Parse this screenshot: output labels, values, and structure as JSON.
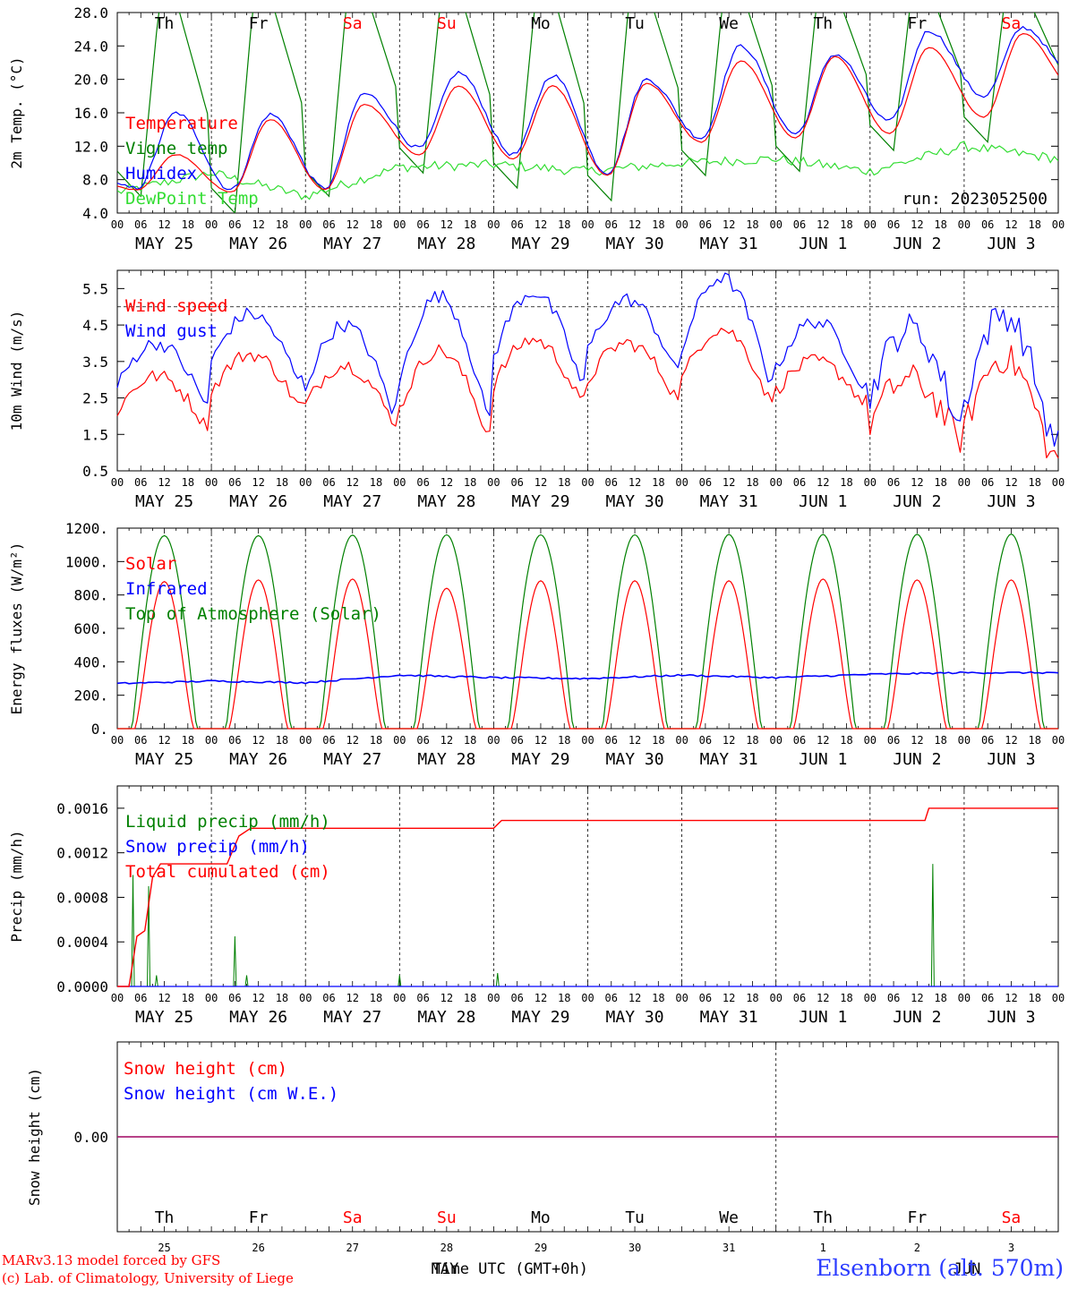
{
  "footer": {
    "model_line": "MARv3.13 model forced by GFS",
    "lab_line": "(c) Lab. of Climatology, University of Liege",
    "station": "Elsenborn (alt. 570m)",
    "time_axis_label": "Time UTC (GMT+0h)",
    "month_label_may": "MAY",
    "month_label_jun": "JUN"
  },
  "colors": {
    "red": "#ff0000",
    "blue": "#0000ff",
    "green": "#008000",
    "lightgreen": "#33dd33",
    "weekend": "#ff0000",
    "weekday": "#000000"
  },
  "days": {
    "weekday_names": [
      "Th",
      "Fr",
      "Sa",
      "Su",
      "Mo",
      "Tu",
      "We",
      "Th",
      "Fr",
      "Sa"
    ],
    "weekend_flags": [
      false,
      false,
      true,
      true,
      false,
      false,
      false,
      false,
      false,
      true
    ],
    "date_labels": [
      "MAY 25",
      "MAY 26",
      "MAY 27",
      "MAY 28",
      "MAY 29",
      "MAY 30",
      "MAY 31",
      "JUN  1",
      "JUN  2",
      "JUN  3"
    ],
    "day_numbers": [
      "25",
      "26",
      "27",
      "28",
      "29",
      "30",
      "31",
      "1",
      "2",
      "3"
    ],
    "hour_ticks": [
      "00",
      "06",
      "12",
      "18"
    ],
    "end_hour": "00"
  },
  "chart_data": [
    {
      "type": "line",
      "id": "temperature",
      "ylabel": "2m Temp. (°C)",
      "yticks": [
        "28.0",
        "24.0",
        "20.0",
        "16.0",
        "12.0",
        "8.0",
        "4.0"
      ],
      "ylim": [
        4,
        28
      ],
      "x_unit": "hours since 2023-05-25 00 UTC",
      "xlim": [
        0,
        240
      ],
      "annotation": "run: 2023052500",
      "series": [
        {
          "name": "Temperature",
          "color": "#ff0000",
          "min": [
            6.8,
            6.5,
            6.8,
            11.0,
            10.5,
            8.5,
            12.5,
            13.0,
            13.5,
            15.5
          ],
          "max": [
            11.0,
            15.2,
            17.0,
            19.2,
            19.2,
            19.5,
            22.2,
            22.7,
            23.8,
            25.5
          ],
          "end": 18.5
        },
        {
          "name": "Vigne temp",
          "color": "#008000",
          "min": [
            6.0,
            4.0,
            6.0,
            8.8,
            7.0,
            5.5,
            8.5,
            9.0,
            11.5,
            12.5
          ],
          "max": [
            26.5,
            27.0,
            28.0,
            28.0,
            27.5,
            28.0,
            28.0,
            28.0,
            28.0,
            28.0
          ],
          "end": 15.5
        },
        {
          "name": "Humidex",
          "color": "#0000ff",
          "min": [
            7.0,
            6.8,
            7.0,
            11.8,
            11.0,
            8.8,
            13.0,
            13.5,
            15.0,
            18.0
          ],
          "max": [
            16.0,
            15.8,
            18.3,
            20.8,
            20.5,
            20.0,
            24.0,
            23.0,
            25.8,
            26.2
          ],
          "end": 20.0
        },
        {
          "name": "DewPoint Temp",
          "color": "#33dd33",
          "daily_mean": [
            6.5,
            8.8,
            6.0,
            9.5,
            9.8,
            9.0,
            10.0,
            10.5,
            9.0,
            12.0
          ],
          "end": 10.5
        }
      ]
    },
    {
      "type": "line",
      "id": "wind",
      "ylabel": "10m Wind (m/s)",
      "yticks": [
        "5.5",
        "4.5",
        "3.5",
        "2.5",
        "1.5",
        "0.5"
      ],
      "ylim": [
        0.5,
        6.0
      ],
      "reference_line": 5.0,
      "xlim": [
        0,
        240
      ],
      "series": [
        {
          "name": "Wind speed",
          "color": "#ff0000",
          "daily_max": [
            3.1,
            3.7,
            3.4,
            3.8,
            4.1,
            4.0,
            4.4,
            3.5,
            3.0,
            3.6
          ],
          "daily_min": [
            1.8,
            2.3,
            1.9,
            1.6,
            2.4,
            2.6,
            2.5,
            2.4,
            1.4,
            0.9
          ]
        },
        {
          "name": "Wind gust",
          "color": "#0000ff",
          "daily_max": [
            4.0,
            4.8,
            4.5,
            5.3,
            5.4,
            5.2,
            5.8,
            4.6,
            4.4,
            4.8
          ],
          "daily_min": [
            2.4,
            3.0,
            2.2,
            2.1,
            3.0,
            3.3,
            3.1,
            2.8,
            1.9,
            1.4
          ]
        }
      ]
    },
    {
      "type": "line",
      "id": "energy",
      "ylabel": "Energy fluxes (W/m²)",
      "yticks": [
        "1200.",
        "1000.",
        "800.",
        "600.",
        "400.",
        "200.",
        "0."
      ],
      "ylim": [
        0,
        1200
      ],
      "xlim": [
        0,
        240
      ],
      "series": [
        {
          "name": "Solar",
          "color": "#ff0000",
          "daily_peak": [
            880,
            890,
            895,
            840,
            885,
            885,
            885,
            895,
            890,
            890
          ]
        },
        {
          "name": "Infrared",
          "color": "#0000ff",
          "daily_mean": [
            270,
            285,
            275,
            320,
            305,
            300,
            320,
            305,
            325,
            335
          ]
        },
        {
          "name": "Top of Atmosphere (Solar)",
          "color": "#008000",
          "daily_peak": [
            1155,
            1155,
            1158,
            1160,
            1160,
            1160,
            1162,
            1162,
            1163,
            1164
          ]
        }
      ]
    },
    {
      "type": "line",
      "id": "precip",
      "ylabel": "Precip (mm/h)",
      "yticks": [
        "0.0016",
        "0.0012",
        "0.0008",
        "0.0004",
        "0.0000"
      ],
      "ylim": [
        0,
        0.0018
      ],
      "xlim": [
        0,
        240
      ],
      "series": [
        {
          "name": "Liquid precip (mm/h)",
          "color": "#008000",
          "spikes": [
            [
              4,
              0.001
            ],
            [
              8,
              0.0009
            ],
            [
              10,
              0.0001
            ],
            [
              30,
              0.00045
            ],
            [
              33,
              0.0001
            ],
            [
              72,
              0.0001
            ],
            [
              97,
              0.00012
            ],
            [
              208,
              0.0011
            ]
          ]
        },
        {
          "name": "Snow precip (mm/h)",
          "color": "#0000ff",
          "constant": 0
        },
        {
          "name": "Total cumulated (cm)",
          "color": "#ff0000",
          "steps": [
            [
              0,
              0
            ],
            [
              3,
              0
            ],
            [
              5,
              0.00045
            ],
            [
              7,
              0.0005
            ],
            [
              9,
              0.00098
            ],
            [
              11,
              0.0011
            ],
            [
              28,
              0.0011
            ],
            [
              31,
              0.00135
            ],
            [
              34,
              0.00142
            ],
            [
              96,
              0.00142
            ],
            [
              98,
              0.00149
            ],
            [
              206,
              0.00149
            ],
            [
              207,
              0.0016
            ],
            [
              240,
              0.0016
            ]
          ]
        }
      ]
    },
    {
      "type": "line",
      "id": "snow",
      "ylabel": "Snow height (cm)",
      "yticks": [
        "0.00"
      ],
      "xlim": [
        0,
        240
      ],
      "series": [
        {
          "name": "Snow height (cm)",
          "color": "#ff0000",
          "constant": 0
        },
        {
          "name": "Snow height (cm W.E.)",
          "color": "#0000ff",
          "constant": 0
        }
      ]
    }
  ]
}
